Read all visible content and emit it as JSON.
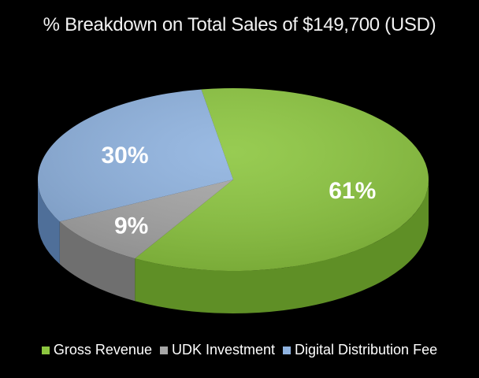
{
  "chart_data": {
    "type": "pie",
    "title": "% Breakdown on Total Sales of $149,700 (USD)",
    "categories": [
      "Gross Revenue",
      "UDK Investment",
      "Digital Distribution Fee"
    ],
    "values": [
      61,
      9,
      30
    ],
    "labels": [
      "61%",
      "9%",
      "30%"
    ],
    "colors": [
      "#8cc63f",
      "#a6a6a6",
      "#8fb3e0"
    ],
    "side_colors": [
      "#5f8f26",
      "#6f6f6f",
      "#4f6f99"
    ],
    "legend_position": "bottom",
    "style": "3d"
  }
}
